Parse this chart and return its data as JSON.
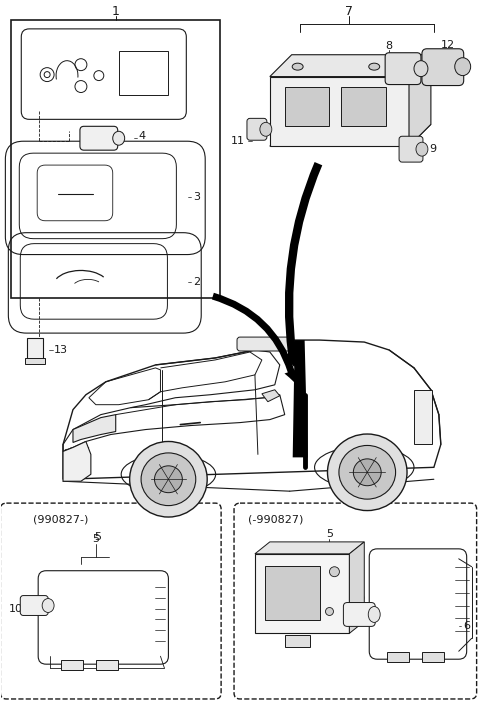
{
  "bg_color": "#ffffff",
  "line_color": "#1a1a1a",
  "fig_width": 4.8,
  "fig_height": 7.02,
  "dpi": 100,
  "label_990827_left": "(990827-)",
  "label_990827_right": "(-990827)"
}
